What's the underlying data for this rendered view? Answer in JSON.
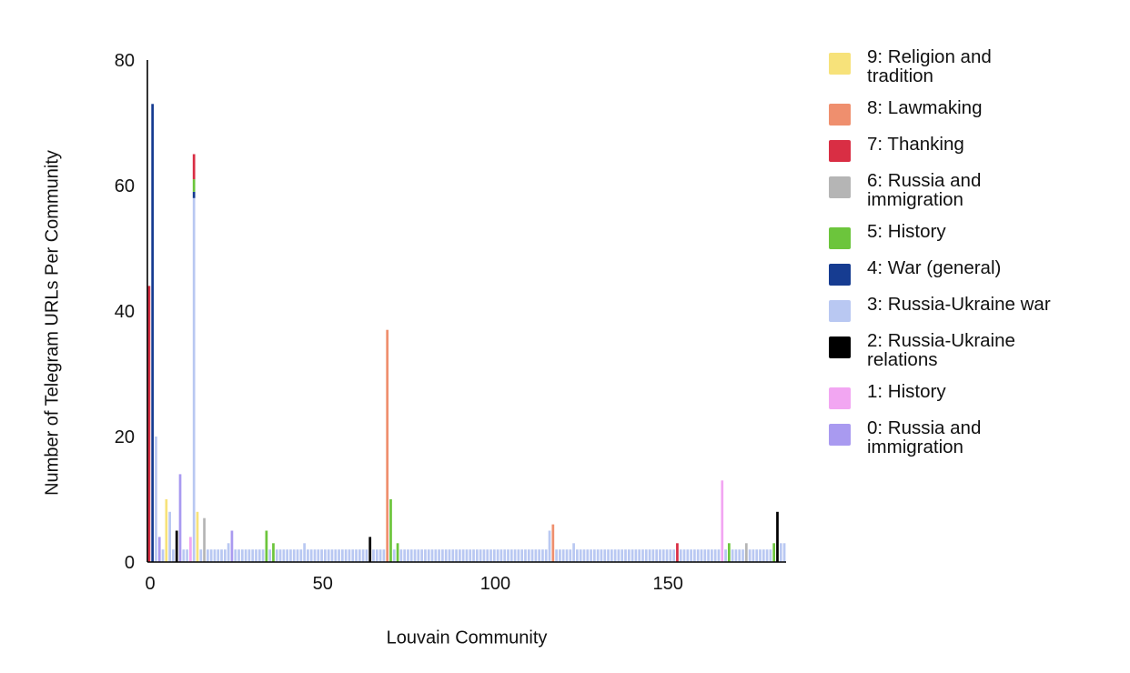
{
  "chart_data": {
    "type": "bar",
    "stacked": true,
    "title": "",
    "xlabel": "Louvain Community",
    "ylabel": "Number of Telegram URLs Per Community",
    "xlim": [
      0,
      185
    ],
    "ylim": [
      0,
      80
    ],
    "x_ticks": [
      0,
      50,
      100,
      150
    ],
    "y_ticks": [
      0,
      20,
      40,
      60,
      80
    ],
    "legend_position": "right",
    "topics": [
      {
        "id": 9,
        "name": "9: Religion and tradition",
        "color": "#f7e27a"
      },
      {
        "id": 8,
        "name": "8: Lawmaking",
        "color": "#ef8f6e"
      },
      {
        "id": 7,
        "name": "7: Thanking",
        "color": "#d92e44"
      },
      {
        "id": 6,
        "name": "6: Russia and immigration",
        "color": "#b5b5b5"
      },
      {
        "id": 5,
        "name": "5: History",
        "color": "#6cc53c"
      },
      {
        "id": 4,
        "name": "4: War (general)",
        "color": "#163c91"
      },
      {
        "id": 3,
        "name": "3: Russia-Ukraine war",
        "color": "#b9c8f2"
      },
      {
        "id": 2,
        "name": "2: Russia-Ukraine relations",
        "color": "#000000"
      },
      {
        "id": 1,
        "name": "1: History",
        "color": "#f2a6f2"
      },
      {
        "id": 0,
        "name": "0: Russia and immigration",
        "color": "#a99af0"
      }
    ],
    "default_community": {
      "x_range": [
        0,
        184
      ],
      "topic": 3,
      "value": 2
    },
    "communities": [
      {
        "x": 0,
        "topic": 7,
        "value": 44
      },
      {
        "x": 1,
        "topic": 4,
        "value": 73
      },
      {
        "x": 2,
        "topic": 3,
        "value": 20
      },
      {
        "x": 3,
        "topic": 0,
        "value": 4
      },
      {
        "x": 5,
        "topic": 9,
        "value": 10
      },
      {
        "x": 6,
        "topic": 3,
        "value": 8
      },
      {
        "x": 8,
        "topic": 2,
        "value": 5
      },
      {
        "x": 9,
        "topic": 0,
        "value": 14
      },
      {
        "x": 12,
        "topic": 1,
        "value": 4
      },
      {
        "x": 13,
        "stack": [
          {
            "topic": 3,
            "value": 58
          },
          {
            "topic": 4,
            "value": 1
          },
          {
            "topic": 5,
            "value": 2
          },
          {
            "topic": 7,
            "value": 4
          }
        ]
      },
      {
        "x": 14,
        "topic": 9,
        "value": 8
      },
      {
        "x": 16,
        "topic": 6,
        "value": 7
      },
      {
        "x": 23,
        "topic": 3,
        "value": 3
      },
      {
        "x": 24,
        "topic": 0,
        "value": 5
      },
      {
        "x": 34,
        "topic": 5,
        "value": 5
      },
      {
        "x": 36,
        "topic": 5,
        "value": 3
      },
      {
        "x": 45,
        "topic": 3,
        "value": 3
      },
      {
        "x": 64,
        "topic": 2,
        "value": 4
      },
      {
        "x": 69,
        "topic": 8,
        "value": 37
      },
      {
        "x": 70,
        "topic": 5,
        "value": 10
      },
      {
        "x": 72,
        "topic": 5,
        "value": 3
      },
      {
        "x": 116,
        "topic": 3,
        "value": 5
      },
      {
        "x": 117,
        "topic": 8,
        "value": 6
      },
      {
        "x": 123,
        "topic": 3,
        "value": 3
      },
      {
        "x": 153,
        "topic": 7,
        "value": 3
      },
      {
        "x": 166,
        "topic": 1,
        "value": 13
      },
      {
        "x": 168,
        "topic": 5,
        "value": 3
      },
      {
        "x": 173,
        "topic": 6,
        "value": 3
      },
      {
        "x": 181,
        "topic": 5,
        "value": 3
      },
      {
        "x": 182,
        "topic": 2,
        "value": 8
      },
      {
        "x": 183,
        "topic": 3,
        "value": 3
      },
      {
        "x": 184,
        "topic": 3,
        "value": 3
      }
    ]
  }
}
